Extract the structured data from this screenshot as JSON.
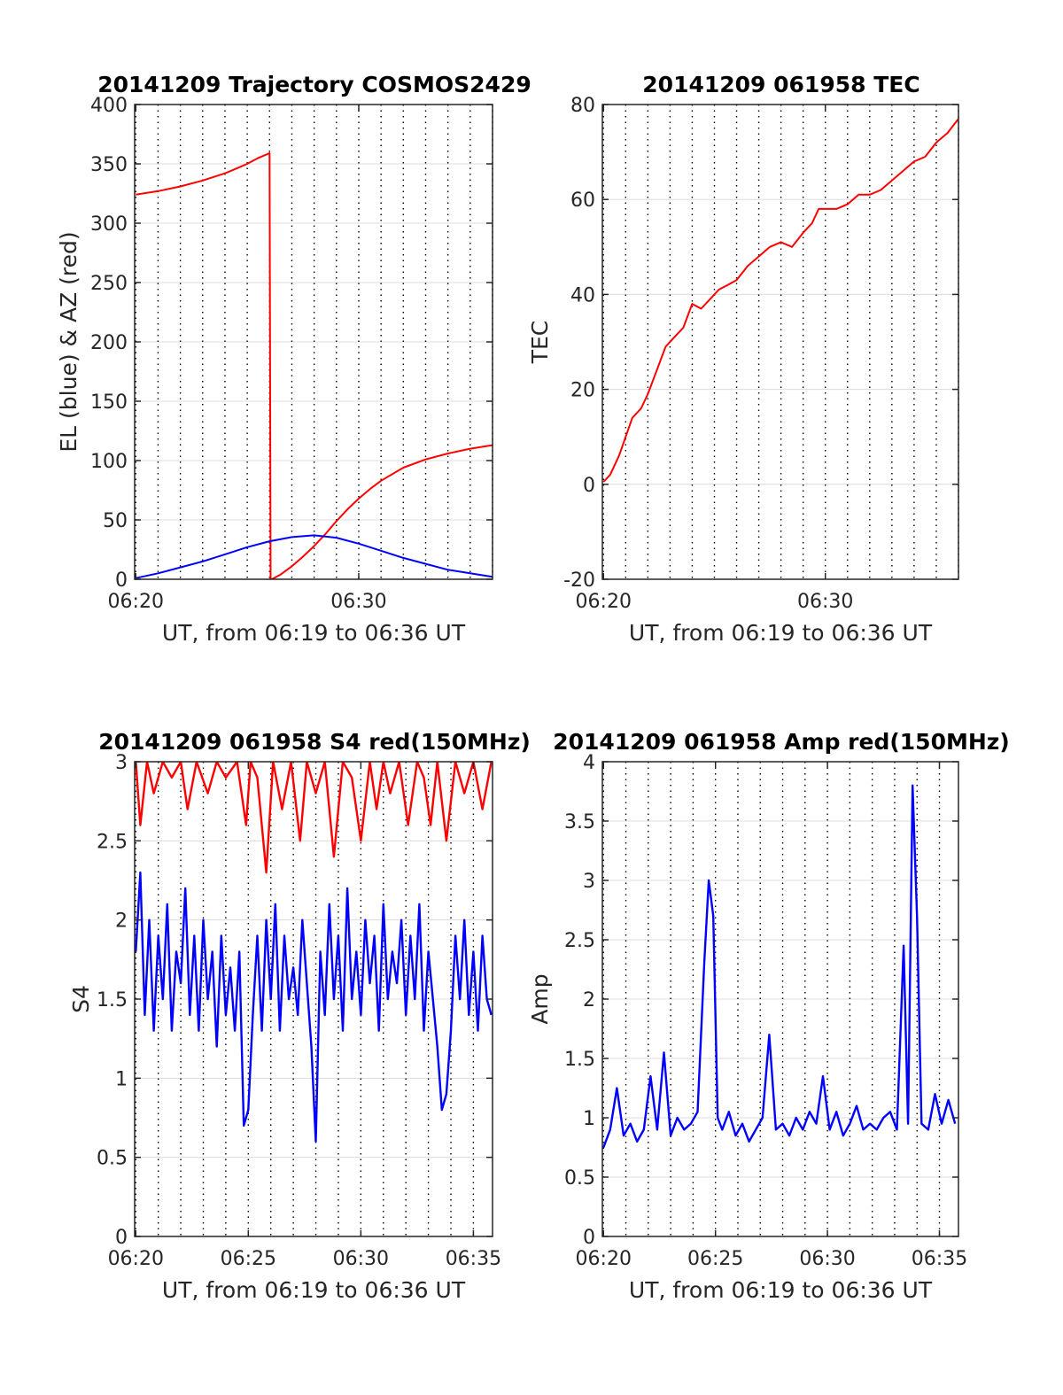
{
  "colors": {
    "red": "#ff0000",
    "blue": "#0000ff",
    "axis": "#262626",
    "grid_h": "#dcdcdc",
    "grid_v": "#000000"
  },
  "chart_data": [
    {
      "id": "trajectory",
      "type": "line",
      "title": "20141209 Trajectory COSMOS2429",
      "xlabel": "UT, from 06:19 to 06:36 UT",
      "ylabel": "EL (blue) & AZ (red)",
      "xlim": [
        19.95,
        36.0
      ],
      "ylim": [
        0,
        400
      ],
      "xticks": [
        20,
        30
      ],
      "xtick_labels": [
        "06:20",
        "06:30"
      ],
      "yticks": [
        0,
        50,
        100,
        150,
        200,
        250,
        300,
        350,
        400
      ],
      "ytick_labels": [
        "0",
        "50",
        "100",
        "150",
        "200",
        "250",
        "300",
        "350",
        "400"
      ],
      "dotted_gridlines_every_min": 1,
      "series": [
        {
          "color": "red",
          "x": [
            20.0,
            21.0,
            22.0,
            23.0,
            24.0,
            24.5,
            25.0,
            25.5,
            26.0,
            26.05,
            26.1,
            26.5,
            27.0,
            27.5,
            28.0,
            28.5,
            29.0,
            29.5,
            30.0,
            30.5,
            31.0,
            32.0,
            33.0,
            34.0,
            35.0,
            36.0
          ],
          "y": [
            324,
            327,
            331,
            336,
            342,
            346,
            350,
            355,
            359,
            0,
            0,
            4,
            11,
            19,
            28,
            38,
            49,
            59,
            68,
            76,
            83,
            94,
            101,
            106,
            110,
            113
          ]
        },
        {
          "color": "blue",
          "x": [
            20.0,
            21.0,
            22.0,
            23.0,
            24.0,
            25.0,
            26.0,
            27.0,
            28.0,
            29.0,
            30.0,
            31.0,
            32.0,
            33.0,
            34.0,
            35.0,
            36.0
          ],
          "y": [
            1,
            5,
            10,
            15,
            21,
            27,
            32,
            35.5,
            37,
            35,
            30,
            24,
            18,
            13,
            8,
            5,
            2
          ]
        }
      ]
    },
    {
      "id": "tec",
      "type": "line",
      "title": "20141209 061958 TEC",
      "xlabel": "UT, from 06:19 to 06:36 UT",
      "ylabel": "TEC",
      "xlim": [
        19.95,
        36.0
      ],
      "ylim": [
        -20,
        80
      ],
      "xticks": [
        20,
        30
      ],
      "xtick_labels": [
        "06:20",
        "06:30"
      ],
      "yticks": [
        -20,
        0,
        20,
        40,
        60,
        80
      ],
      "ytick_labels": [
        "-20",
        "0",
        "20",
        "40",
        "60",
        "80"
      ],
      "dotted_gridlines_every_min": 1,
      "series": [
        {
          "color": "red",
          "x": [
            20.0,
            20.3,
            20.7,
            21.0,
            21.3,
            21.7,
            22.0,
            22.4,
            22.8,
            23.2,
            23.6,
            24.0,
            24.4,
            24.8,
            25.2,
            25.6,
            26.0,
            26.5,
            27.0,
            27.5,
            28.0,
            28.5,
            29.0,
            29.4,
            29.7,
            30.0,
            30.5,
            31.0,
            31.5,
            32.0,
            32.5,
            33.0,
            33.5,
            34.0,
            34.5,
            35.0,
            35.5,
            36.0
          ],
          "y": [
            0.5,
            2,
            6,
            10,
            14,
            16,
            19,
            24,
            29,
            31,
            33,
            38,
            37,
            39,
            41,
            42,
            43,
            46,
            48,
            50,
            51,
            50,
            53,
            55,
            58,
            58,
            58,
            59,
            61,
            61,
            62,
            64,
            66,
            68,
            69,
            72,
            74,
            77
          ]
        }
      ]
    },
    {
      "id": "s4",
      "type": "line",
      "title": "20141209 061958 S4 red(150MHz)",
      "xlabel": "UT, from 06:19 to 06:36 UT",
      "ylabel": "S4",
      "xlim": [
        19.95,
        35.85
      ],
      "ylim": [
        0,
        3
      ],
      "xticks": [
        20,
        25,
        30,
        35
      ],
      "xtick_labels": [
        "06:20",
        "06:25",
        "06:30",
        "06:35"
      ],
      "yticks": [
        0,
        0.5,
        1,
        1.5,
        2,
        2.5,
        3
      ],
      "ytick_labels": [
        "0",
        "0.5",
        "1",
        "1.5",
        "2",
        "2.5",
        "3"
      ],
      "dotted_gridlines_every_min": 1,
      "series": [
        {
          "color": "red",
          "x": [
            20.0,
            20.2,
            20.5,
            20.8,
            21.2,
            21.6,
            22.0,
            22.3,
            22.7,
            23.2,
            23.6,
            24.0,
            24.5,
            24.9,
            25.1,
            25.4,
            25.8,
            26.1,
            26.5,
            26.9,
            27.3,
            27.6,
            28.0,
            28.4,
            28.8,
            29.2,
            29.6,
            30.0,
            30.4,
            30.7,
            31.0,
            31.3,
            31.7,
            32.1,
            32.5,
            32.8,
            33.1,
            33.4,
            33.8,
            34.2,
            34.6,
            35.0,
            35.4,
            35.8
          ],
          "y": [
            3,
            2.6,
            3,
            2.8,
            3,
            2.9,
            3,
            2.7,
            3,
            2.8,
            3,
            2.9,
            3,
            2.6,
            3,
            2.9,
            2.3,
            3,
            2.7,
            3,
            2.5,
            3,
            2.8,
            3,
            2.4,
            3,
            2.9,
            2.5,
            3,
            2.7,
            3,
            2.8,
            3,
            2.6,
            3,
            2.9,
            2.6,
            3,
            2.5,
            3,
            2.8,
            3,
            2.7,
            3
          ]
        },
        {
          "color": "blue",
          "x": [
            20.0,
            20.2,
            20.4,
            20.6,
            20.8,
            21.0,
            21.2,
            21.4,
            21.6,
            21.8,
            22.0,
            22.2,
            22.4,
            22.6,
            22.8,
            23.0,
            23.2,
            23.4,
            23.6,
            23.8,
            24.0,
            24.2,
            24.4,
            24.6,
            24.8,
            25.0,
            25.2,
            25.4,
            25.6,
            25.8,
            26.0,
            26.2,
            26.4,
            26.6,
            26.8,
            27.0,
            27.2,
            27.4,
            27.6,
            27.8,
            28.0,
            28.2,
            28.4,
            28.6,
            28.8,
            29.0,
            29.2,
            29.4,
            29.6,
            29.8,
            30.0,
            30.2,
            30.4,
            30.6,
            30.8,
            31.0,
            31.2,
            31.4,
            31.6,
            31.8,
            32.0,
            32.2,
            32.4,
            32.6,
            32.8,
            33.0,
            33.2,
            33.4,
            33.6,
            33.8,
            34.0,
            34.2,
            34.4,
            34.6,
            34.8,
            35.0,
            35.2,
            35.4,
            35.6,
            35.8
          ],
          "y": [
            1.8,
            2.3,
            1.4,
            2.0,
            1.3,
            1.9,
            1.5,
            2.1,
            1.3,
            1.8,
            1.6,
            2.2,
            1.4,
            1.9,
            1.3,
            2.0,
            1.5,
            1.8,
            1.2,
            1.9,
            1.4,
            1.7,
            1.3,
            1.8,
            0.7,
            0.8,
            1.4,
            1.9,
            1.3,
            2.0,
            1.5,
            2.1,
            1.3,
            1.9,
            1.5,
            1.7,
            1.4,
            2.0,
            1.6,
            1.2,
            0.6,
            1.8,
            1.4,
            2.1,
            1.5,
            1.9,
            1.3,
            2.2,
            1.5,
            1.8,
            1.4,
            2.0,
            1.6,
            1.9,
            1.3,
            2.1,
            1.5,
            1.8,
            1.6,
            2.0,
            1.4,
            1.9,
            1.5,
            2.1,
            1.3,
            1.8,
            1.5,
            1.2,
            0.8,
            0.9,
            1.3,
            1.9,
            1.5,
            2.0,
            1.4,
            1.8,
            1.3,
            1.9,
            1.5,
            1.4
          ]
        }
      ]
    },
    {
      "id": "amp",
      "type": "line",
      "title": "20141209 061958 Amp red(150MHz)",
      "xlabel": "UT, from 06:19 to 06:36 UT",
      "ylabel": "Amp",
      "xlim": [
        19.95,
        35.85
      ],
      "ylim": [
        0,
        4
      ],
      "xticks": [
        20,
        25,
        30,
        35
      ],
      "xtick_labels": [
        "06:20",
        "06:25",
        "06:30",
        "06:35"
      ],
      "yticks": [
        0,
        0.5,
        1,
        1.5,
        2,
        2.5,
        3,
        3.5,
        4
      ],
      "ytick_labels": [
        "0",
        "0.5",
        "1",
        "1.5",
        "2",
        "2.5",
        "3",
        "3.5",
        "4"
      ],
      "dotted_gridlines_every_min": 1,
      "series": [
        {
          "color": "blue",
          "x": [
            20.0,
            20.3,
            20.6,
            20.9,
            21.2,
            21.5,
            21.8,
            22.1,
            22.4,
            22.7,
            23.0,
            23.3,
            23.6,
            23.9,
            24.2,
            24.5,
            24.7,
            24.9,
            25.1,
            25.3,
            25.6,
            25.9,
            26.2,
            26.5,
            26.8,
            27.1,
            27.4,
            27.7,
            28.0,
            28.3,
            28.6,
            28.9,
            29.2,
            29.5,
            29.8,
            30.1,
            30.4,
            30.7,
            31.0,
            31.3,
            31.6,
            31.9,
            32.2,
            32.5,
            32.8,
            33.1,
            33.4,
            33.6,
            33.8,
            34.0,
            34.2,
            34.5,
            34.8,
            35.1,
            35.4,
            35.7
          ],
          "y": [
            0.75,
            0.9,
            1.25,
            0.85,
            0.95,
            0.8,
            0.9,
            1.35,
            0.9,
            1.55,
            0.85,
            1.0,
            0.9,
            0.95,
            1.05,
            2.3,
            3.0,
            2.7,
            1.0,
            0.9,
            1.05,
            0.85,
            0.95,
            0.8,
            0.9,
            1.0,
            1.7,
            0.9,
            0.95,
            0.85,
            1.0,
            0.9,
            1.05,
            0.95,
            1.35,
            0.9,
            1.05,
            0.85,
            0.95,
            1.1,
            0.9,
            0.95,
            0.9,
            1.0,
            1.05,
            0.9,
            2.45,
            0.95,
            3.8,
            2.7,
            0.95,
            0.9,
            1.2,
            0.95,
            1.15,
            0.95
          ]
        }
      ]
    }
  ]
}
